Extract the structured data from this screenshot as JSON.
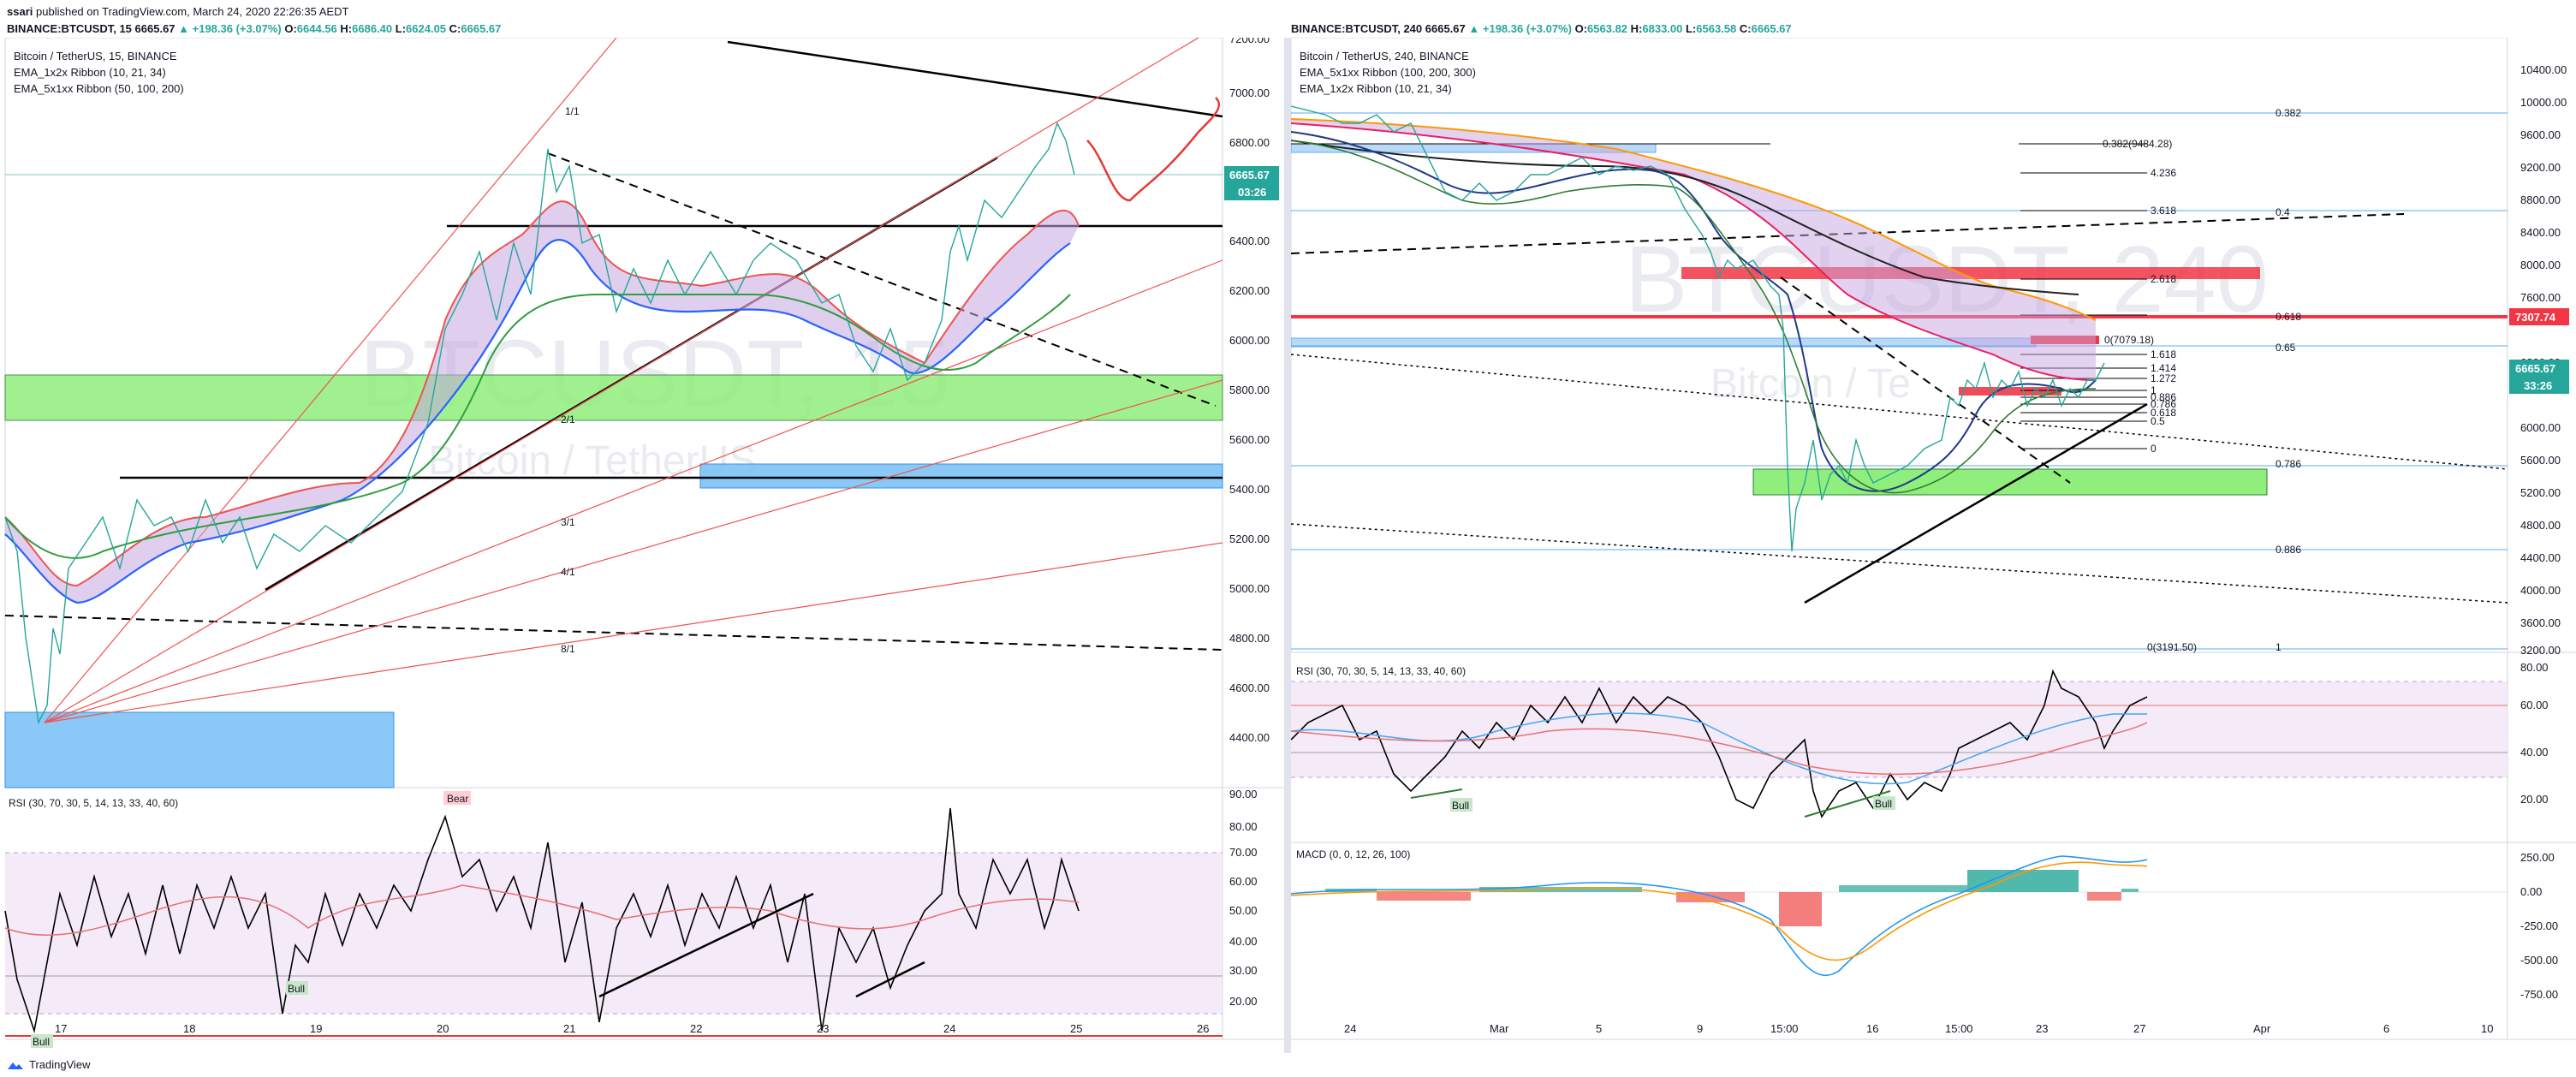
{
  "header": {
    "author": "ssari",
    "published_text": "published on TradingView.com, March 24, 2020 22:26:35 AEDT"
  },
  "left_chart": {
    "symbol_line": {
      "symbol": "BINANCE:BTCUSDT, 15",
      "last": "6665.67",
      "change": "▲ +198.36 (+3.07%)",
      "o_label": "O:",
      "o": "6644.56",
      "h_label": "H:",
      "h": "6686.40",
      "l_label": "L:",
      "l": "6624.05",
      "c_label": "C:",
      "c": "6665.67"
    },
    "legend": [
      "Bitcoin / TetherUS, 15, BINANCE",
      "EMA_1x2x Ribbon  (10, 21, 34)",
      "EMA_5x1xx Ribbon  (50, 100, 200)"
    ],
    "watermark": "BTCUSDT, 15",
    "watermark_sub": "Bitcoin / TetherUS",
    "price_ticks": [
      "7200.00",
      "7000.00",
      "6800.00",
      "6600.00",
      "6400.00",
      "6200.00",
      "6000.00",
      "5800.00",
      "5600.00",
      "5400.00",
      "5200.00",
      "5000.00",
      "4800.00",
      "4600.00",
      "4400.00"
    ],
    "price_badge": "6665.67",
    "time_badge": "03:26",
    "fan_labels": [
      "1/1",
      "2/1",
      "3/1",
      "4/1",
      "8/1"
    ],
    "rsi_legend": "RSI (30, 70, 30, 5, 14, 13, 33, 40, 60)",
    "rsi_ticks": [
      "90.00",
      "80.00",
      "70.00",
      "60.00",
      "50.00",
      "40.00",
      "30.00",
      "20.00"
    ],
    "rsi_tags": {
      "bear": "Bear",
      "bull": "Bull"
    },
    "x_ticks": [
      "17",
      "18",
      "19",
      "20",
      "21",
      "22",
      "23",
      "24",
      "25",
      "26"
    ]
  },
  "right_chart": {
    "symbol_line": {
      "symbol": "BINANCE:BTCUSDT, 240",
      "last": "6665.67",
      "change": "▲ +198.36 (+3.07%)",
      "o_label": "O:",
      "o": "6563.82",
      "h_label": "H:",
      "h": "6833.00",
      "l_label": "L:",
      "l": "6563.58",
      "c_label": "C:",
      "c": "6665.67"
    },
    "legend": [
      "Bitcoin / TetherUS, 240, BINANCE",
      "EMA_5x1xx Ribbon  (100, 200, 300)",
      "EMA_1x2x Ribbon  (10, 21, 34)"
    ],
    "watermark": "BTCUSDT, 240",
    "watermark_sub": "Bitcoin / Te",
    "price_ticks": [
      "10400.00",
      "10000.00",
      "9600.00",
      "9200.00",
      "8800.00",
      "8400.00",
      "8000.00",
      "7600.00",
      "7200.00",
      "6800.00",
      "6400.00",
      "6000.00",
      "5600.00",
      "5200.00",
      "4800.00",
      "4400.00",
      "4000.00",
      "3600.00",
      "3200.00"
    ],
    "price_badge": "6665.67",
    "time_badge": "33:26",
    "red_badge": "7307.74",
    "fib_labels": {
      "f0382": "0.382",
      "f0382b": "0.382(9484.28)",
      "f4236": "4.236",
      "f3618": "3.618",
      "f2618": "2.618",
      "f0618": "0.618",
      "f1618": "1.618",
      "f0786": "0.786",
      "f0886": "0.886",
      "f1": "1",
      "f065": "0.65",
      "f1414": "1.414",
      "f1272": "1.272",
      "f1b": "1",
      "f0886b": "0.886",
      "f0786b": "0.786",
      "f0618b": "0.618",
      "f05": "0.5",
      "f0": "0",
      "f0b": "0(7079.18)",
      "f0c": "0(3191.50)",
      "f4": "0.4"
    },
    "rsi_legend": "RSI (30, 70, 30, 5, 14, 13, 33, 40, 60)",
    "rsi_ticks": [
      "80.00",
      "60.00",
      "40.00",
      "20.00"
    ],
    "rsi_tags": {
      "bull": "Bull"
    },
    "macd_legend": "MACD (0, 0, 12, 26, 100)",
    "macd_ticks": [
      "250.00",
      "0.00",
      "-250.00",
      "-500.00",
      "-750.00"
    ],
    "x_ticks": [
      "24",
      "Mar",
      "5",
      "9",
      "15:00",
      "16",
      "15:00",
      "23",
      "27",
      "Apr",
      "6",
      "10"
    ]
  },
  "footer": {
    "brand": "TradingView"
  },
  "colors": {
    "green_up": "#26a69a",
    "red_down": "#ef5350",
    "badge_teal": "#26a69a",
    "badge_red": "#f23645",
    "zone_green": "#90ee7c",
    "zone_blue": "#7ec3f7",
    "rsi_fill": "#f3e5f5"
  }
}
